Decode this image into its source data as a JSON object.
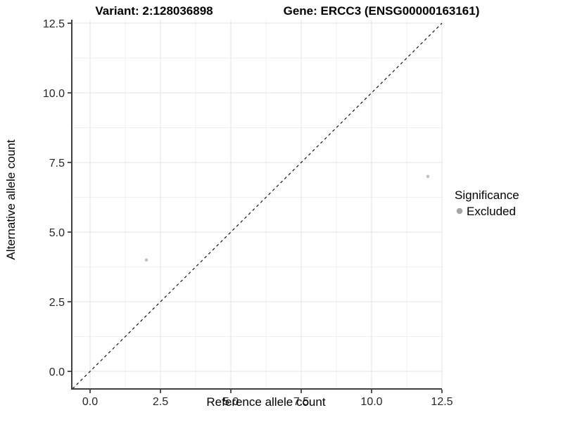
{
  "chart_data": {
    "type": "scatter",
    "title_left": "Variant: 2:128036898",
    "title_right": "Gene: ERCC3 (ENSG00000163161)",
    "xlabel": "Reference allele count",
    "ylabel": "Alternative allele count",
    "xlim": [
      -0.625,
      12.5
    ],
    "ylim": [
      -0.63,
      12.63
    ],
    "xticks": [
      0,
      2.5,
      5,
      7.5,
      10,
      12.5
    ],
    "yticks": [
      0,
      2.5,
      5,
      7.5,
      10,
      12.5
    ],
    "xtick_labels": [
      "0.0",
      "2.5",
      "5.0",
      "7.5",
      "10.0",
      "12.5"
    ],
    "ytick_labels": [
      "0.0",
      "2.5",
      "5.0",
      "7.5",
      "10.0",
      "12.5"
    ],
    "grid": {
      "major": true,
      "minor": true,
      "major_color": "#e3e3e3",
      "minor_color": "#efefef"
    },
    "identity_line": {
      "equation": "y = x",
      "style": "dashed",
      "color": "#000000"
    },
    "series": [
      {
        "name": "Excluded",
        "color": "#c2c2c2",
        "points": [
          {
            "x": 2,
            "y": 4
          },
          {
            "x": 12,
            "y": 7
          }
        ]
      }
    ],
    "legend": {
      "title": "Significance",
      "position": "right",
      "entries": [
        {
          "label": "Excluded",
          "color": "#a5a5a5"
        }
      ]
    },
    "axis_color": "#404040"
  }
}
